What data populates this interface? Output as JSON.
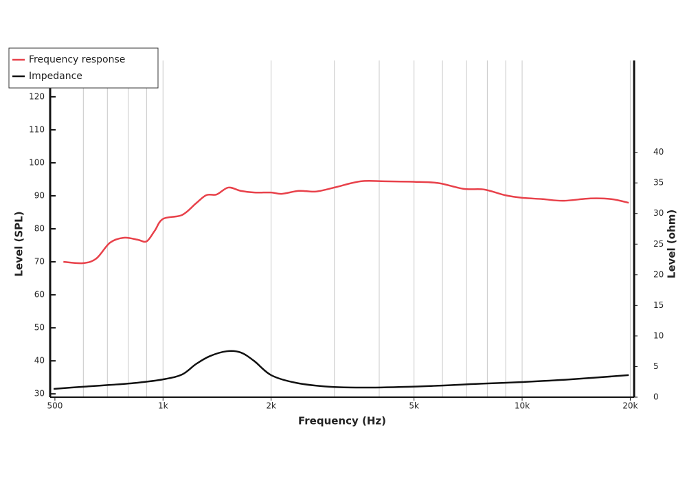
{
  "chart_data": {
    "type": "line",
    "x_label": "Frequency (Hz)",
    "y_label": "Level (SPL)",
    "y2_label": "Level (ohm)",
    "xscale": "log",
    "xlim": [
      485,
      20500
    ],
    "xticks": [
      {
        "value": 500,
        "label": "500"
      },
      {
        "value": 1000,
        "label": "1k"
      },
      {
        "value": 2000,
        "label": "2k"
      },
      {
        "value": 5000,
        "label": "5k"
      },
      {
        "value": 10000,
        "label": "10k"
      },
      {
        "value": 20000,
        "label": "20k"
      }
    ],
    "xgrid": [
      600,
      700,
      800,
      900,
      1000,
      2000,
      3000,
      4000,
      5000,
      6000,
      7000,
      8000,
      9000,
      10000,
      20000
    ],
    "ylim": [
      29,
      131
    ],
    "yticks": [
      30,
      40,
      50,
      60,
      70,
      80,
      90,
      100,
      110,
      120
    ],
    "y2lim": [
      0,
      55
    ],
    "y2ticks": [
      0,
      5,
      10,
      15,
      20,
      25,
      30,
      35,
      40
    ],
    "grid": true,
    "legend": "top-left",
    "series": [
      {
        "name": "Frequency response",
        "color": "#e8414a",
        "x": [
          528,
          598,
          652,
          712,
          778,
          850,
          900,
          948,
          1000,
          1130,
          1235,
          1320,
          1410,
          1520,
          1645,
          1795,
          2000,
          2140,
          2390,
          2670,
          3050,
          3550,
          4150,
          5170,
          5890,
          6880,
          7850,
          8950,
          10000,
          11400,
          13000,
          15500,
          17700,
          19800
        ],
        "values": [
          70,
          69.6,
          71,
          75.8,
          77.3,
          76.7,
          76.2,
          79.4,
          83,
          84.2,
          87.7,
          90.2,
          90.4,
          92.5,
          91.5,
          91,
          91,
          90.6,
          91.5,
          91.3,
          92.7,
          94.4,
          94.4,
          94.2,
          93.8,
          92.1,
          91.9,
          90.2,
          89.4,
          89,
          88.5,
          89.2,
          89,
          87.9
        ]
      },
      {
        "name": "Impedance",
        "color": "#111111",
        "axis": "y2",
        "x": [
          496,
          598,
          712,
          850,
          1000,
          1130,
          1235,
          1350,
          1505,
          1645,
          1795,
          2000,
          2340,
          2915,
          3790,
          5400,
          7680,
          10000,
          13600,
          19800
        ],
        "values": [
          1.35,
          1.7,
          2.0,
          2.36,
          2.9,
          3.7,
          5.4,
          6.7,
          7.5,
          7.3,
          5.9,
          3.6,
          2.36,
          1.7,
          1.57,
          1.8,
          2.2,
          2.47,
          2.9,
          3.6
        ]
      }
    ]
  }
}
